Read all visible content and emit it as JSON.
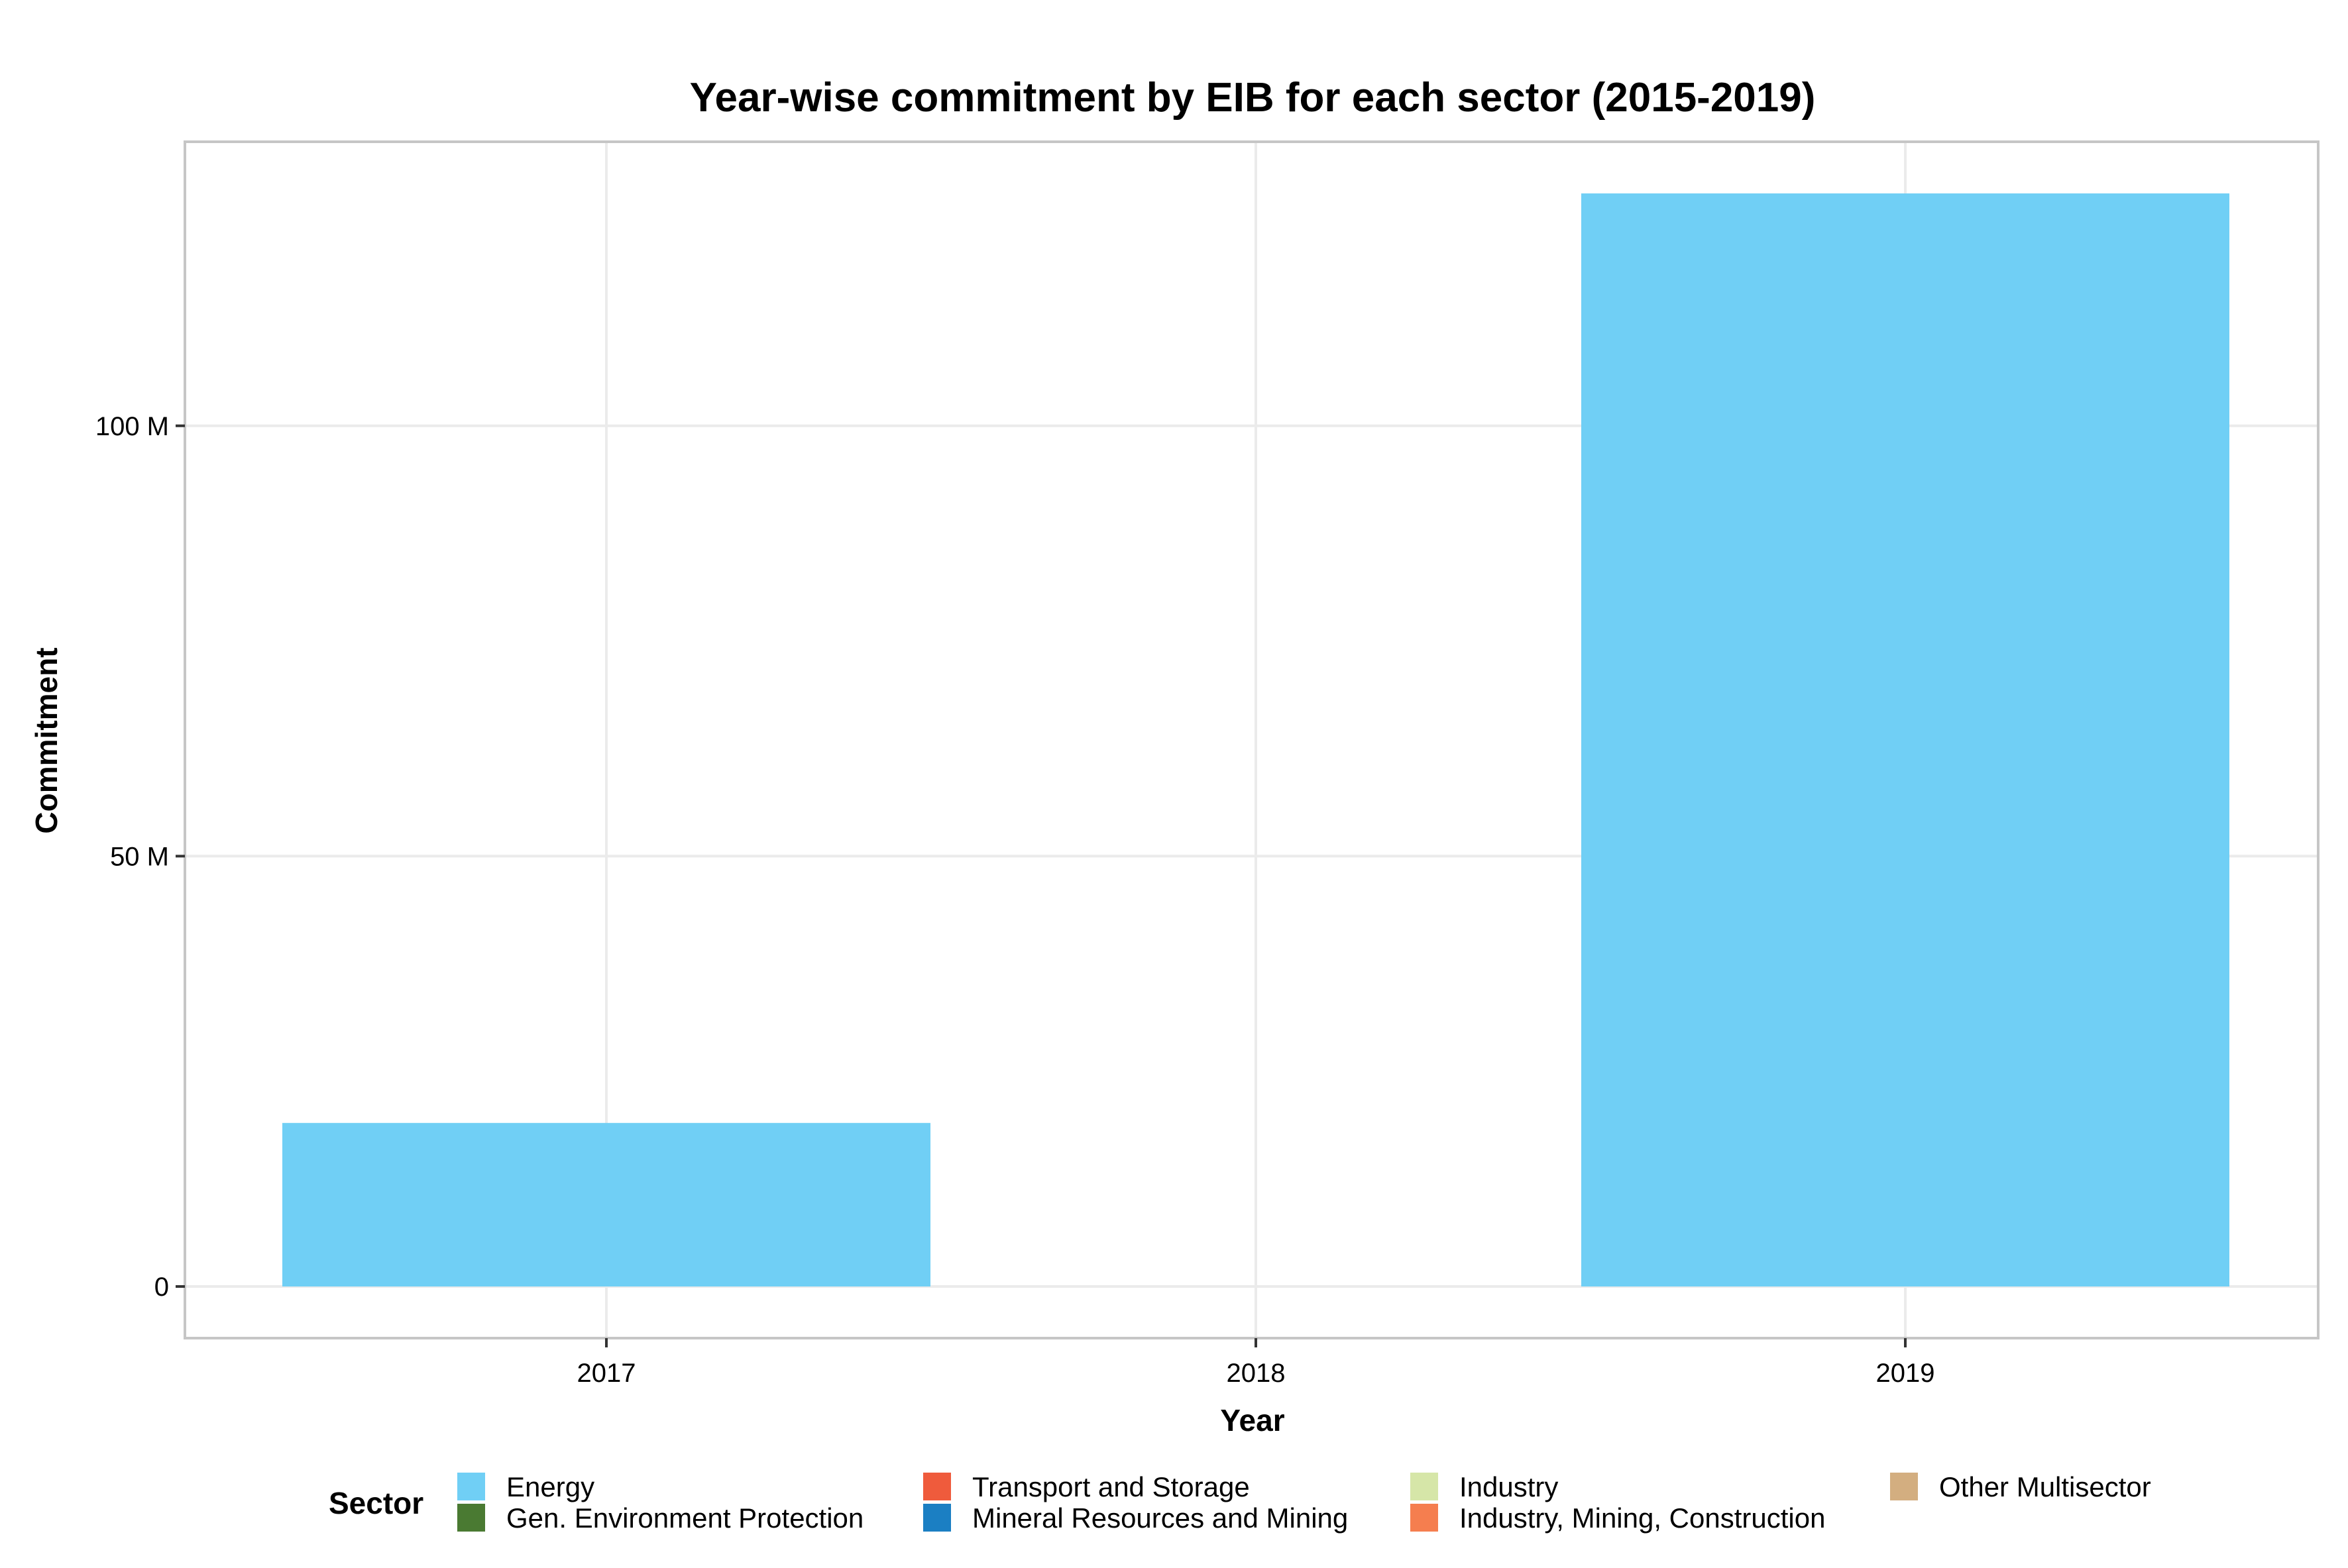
{
  "chart_data": {
    "type": "bar",
    "title": "Year-wise commitment by EIB for each sector (2015-2019)",
    "xlabel": "Year",
    "ylabel": "Commitment",
    "categories": [
      "2017",
      "2018",
      "2019"
    ],
    "series": [
      {
        "name": "Energy",
        "color": "#70CFF5",
        "values": [
          19000000,
          0,
          127000000
        ]
      }
    ],
    "ylim": [
      -6000000,
      133000000
    ],
    "yticks": [
      0,
      50000000,
      100000000
    ],
    "ytick_labels": [
      "0",
      "50 M",
      "100 M"
    ],
    "grid": true,
    "legend": {
      "title": "Sector",
      "position": "bottom",
      "items": [
        {
          "label": "Energy",
          "color": "#70CFF5"
        },
        {
          "label": "Gen. Environment Protection",
          "color": "#4A7A32"
        },
        {
          "label": "Transport and Storage",
          "color": "#EF5B3C"
        },
        {
          "label": "Mineral Resources and Mining",
          "color": "#1B7FC3"
        },
        {
          "label": "Industry",
          "color": "#D6E6A8"
        },
        {
          "label": "Industry, Mining, Construction",
          "color": "#F57E4F"
        },
        {
          "label": "Other Multisector",
          "color": "#D3AE80"
        }
      ]
    }
  }
}
